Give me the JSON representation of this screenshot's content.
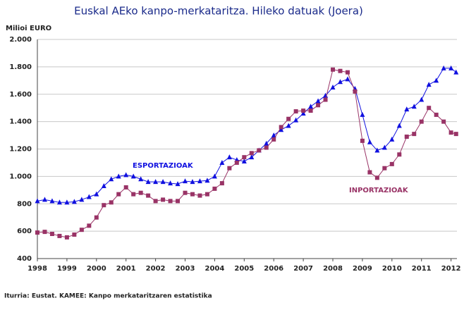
{
  "chart_data": {
    "type": "line",
    "title": "Euskal AEko kanpo-merkataritza. Hileko datuak (Joera)",
    "y_label": "Milioi EURO",
    "source": "Iturria: Eustat. KAMEE: Kanpo merkataritzaren estatistika",
    "x": [
      1998,
      1998.25,
      1998.5,
      1998.75,
      1999,
      1999.25,
      1999.5,
      1999.75,
      2000,
      2000.25,
      2000.5,
      2000.75,
      2001,
      2001.25,
      2001.5,
      2001.75,
      2002,
      2002.25,
      2002.5,
      2002.75,
      2003,
      2003.25,
      2003.5,
      2003.75,
      2004,
      2004.25,
      2004.5,
      2004.75,
      2005,
      2005.25,
      2005.5,
      2005.75,
      2006,
      2006.25,
      2006.5,
      2006.75,
      2007,
      2007.25,
      2007.5,
      2007.75,
      2008,
      2008.25,
      2008.5,
      2008.75,
      2009,
      2009.25,
      2009.5,
      2009.75,
      2010,
      2010.25,
      2010.5,
      2010.75,
      2011,
      2011.25,
      2011.5,
      2011.75,
      2012,
      2012.17
    ],
    "series": [
      {
        "name": "ESPORTAZIOAK",
        "color": "#1010e0",
        "marker": "triangle",
        "values": [
          820,
          830,
          820,
          810,
          810,
          815,
          830,
          850,
          870,
          930,
          980,
          1000,
          1010,
          1000,
          980,
          960,
          960,
          960,
          950,
          945,
          965,
          960,
          965,
          970,
          1000,
          1100,
          1140,
          1120,
          1110,
          1140,
          1190,
          1240,
          1300,
          1340,
          1370,
          1410,
          1460,
          1510,
          1550,
          1590,
          1650,
          1690,
          1710,
          1640,
          1450,
          1250,
          1190,
          1210,
          1270,
          1370,
          1490,
          1510,
          1560,
          1670,
          1700,
          1790,
          1790,
          1760
        ]
      },
      {
        "name": "INPORTAZIOAK",
        "color": "#993366",
        "marker": "square",
        "values": [
          590,
          595,
          580,
          565,
          555,
          575,
          610,
          640,
          700,
          790,
          810,
          870,
          920,
          870,
          880,
          860,
          820,
          830,
          820,
          820,
          880,
          870,
          860,
          870,
          910,
          950,
          1060,
          1100,
          1140,
          1170,
          1190,
          1210,
          1270,
          1360,
          1420,
          1475,
          1480,
          1480,
          1520,
          1560,
          1780,
          1770,
          1760,
          1620,
          1260,
          1030,
          990,
          1060,
          1090,
          1160,
          1290,
          1310,
          1400,
          1500,
          1450,
          1400,
          1320,
          1310
        ]
      }
    ],
    "xlim": [
      1998,
      2012.2
    ],
    "ylim": [
      400,
      2000
    ],
    "xticks": [
      1998,
      1999,
      2000,
      2001,
      2002,
      2003,
      2004,
      2005,
      2006,
      2007,
      2008,
      2009,
      2010,
      2011,
      2012
    ],
    "yticks": [
      {
        "value": 400,
        "label": "400"
      },
      {
        "value": 600,
        "label": "600"
      },
      {
        "value": 800,
        "label": "800"
      },
      {
        "value": 1000,
        "label": "1.000"
      },
      {
        "value": 1200,
        "label": "1.200"
      },
      {
        "value": 1400,
        "label": "1.400"
      },
      {
        "value": 1600,
        "label": "1.600"
      },
      {
        "value": 1800,
        "label": "1.800"
      },
      {
        "value": 2000,
        "label": "2.000"
      }
    ],
    "grid": true
  }
}
